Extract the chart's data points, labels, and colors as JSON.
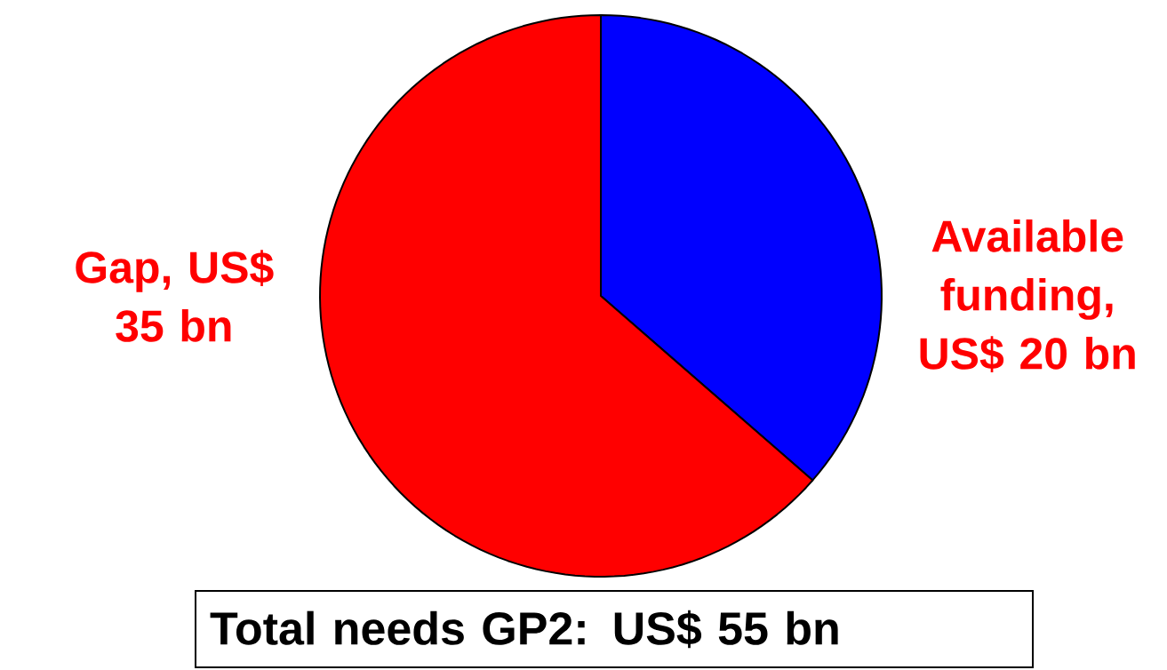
{
  "chart_data": {
    "type": "pie",
    "categories": [
      "Available funding, US$ 20 bn",
      "Gap, US$ 35 bn"
    ],
    "values": [
      36.4,
      63.6
    ],
    "colors": [
      "#0000ff",
      "#ff0000"
    ],
    "annotations": [
      "Total needs GP2: US$ 55 bn"
    ]
  }
}
